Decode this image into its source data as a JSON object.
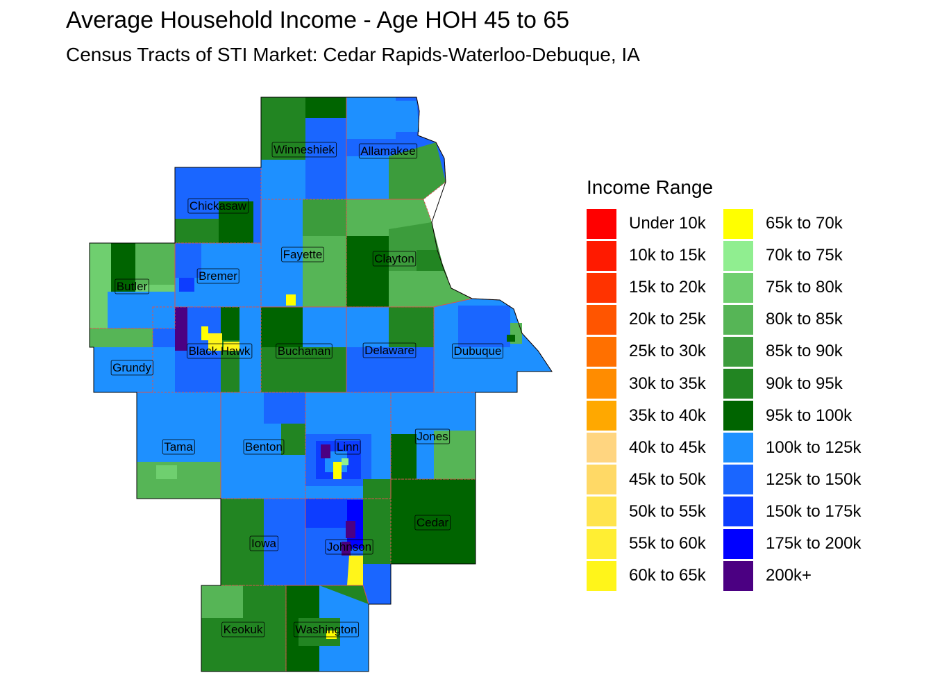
{
  "title": "Average Household Income - Age HOH 45 to 65",
  "subtitle": "Census Tracts of STI Market: Cedar Rapids-Waterloo-Debuque, IA",
  "legend": {
    "title": "Income Range",
    "items": [
      {
        "label": "Under 10k",
        "color": "#FF0000"
      },
      {
        "label": "10k to 15k",
        "color": "#FF1A00"
      },
      {
        "label": "15k to 20k",
        "color": "#FF3300"
      },
      {
        "label": "20k to 25k",
        "color": "#FF5500"
      },
      {
        "label": "25k to 30k",
        "color": "#FF7000"
      },
      {
        "label": "30k to 35k",
        "color": "#FF8C00"
      },
      {
        "label": "35k to 40k",
        "color": "#FFA800"
      },
      {
        "label": "40k to 45k",
        "color": "#FFD580"
      },
      {
        "label": "45k to 50k",
        "color": "#FFD966"
      },
      {
        "label": "50k to 55k",
        "color": "#FFE44D"
      },
      {
        "label": "55k to 60k",
        "color": "#FFEE33"
      },
      {
        "label": "60k to 65k",
        "color": "#FFF51A"
      },
      {
        "label": "65k to 70k",
        "color": "#FFFF00"
      },
      {
        "label": "70k to 75k",
        "color": "#90EE90"
      },
      {
        "label": "75k to 80k",
        "color": "#6FCF6F"
      },
      {
        "label": "80k to 85k",
        "color": "#56B556"
      },
      {
        "label": "85k to 90k",
        "color": "#3C9C3C"
      },
      {
        "label": "90k to 95k",
        "color": "#228522"
      },
      {
        "label": "95k to 100k",
        "color": "#006400"
      },
      {
        "label": "100k to 125k",
        "color": "#1E90FF"
      },
      {
        "label": "125k to 150k",
        "color": "#1A66FF"
      },
      {
        "label": "150k to 175k",
        "color": "#0D3DFF"
      },
      {
        "label": "175k to 200k",
        "color": "#0000FF"
      },
      {
        "label": "200k+",
        "color": "#4B0082"
      }
    ]
  },
  "counties": [
    {
      "name": "Winneshiek",
      "color": "#228522"
    },
    {
      "name": "Allamakee",
      "color": "#1A66FF"
    },
    {
      "name": "Chickasaw",
      "color": "#1A66FF"
    },
    {
      "name": "Fayette",
      "color": "#1E90FF"
    },
    {
      "name": "Clayton",
      "color": "#56B556"
    },
    {
      "name": "Butler",
      "color": "#6FCF6F"
    },
    {
      "name": "Bremer",
      "color": "#1E90FF"
    },
    {
      "name": "Grundy",
      "color": "#1E90FF"
    },
    {
      "name": "Black Hawk",
      "color": "#1A66FF"
    },
    {
      "name": "Buchanan",
      "color": "#228522"
    },
    {
      "name": "Delaware",
      "color": "#1A66FF"
    },
    {
      "name": "Dubuque",
      "color": "#1E90FF"
    },
    {
      "name": "Tama",
      "color": "#1E90FF"
    },
    {
      "name": "Benton",
      "color": "#1E90FF"
    },
    {
      "name": "Linn",
      "color": "#1E90FF"
    },
    {
      "name": "Jones",
      "color": "#1E90FF"
    },
    {
      "name": "Iowa",
      "color": "#228522"
    },
    {
      "name": "Johnson",
      "color": "#1A66FF"
    },
    {
      "name": "Cedar",
      "color": "#006400"
    },
    {
      "name": "Keokuk",
      "color": "#228522"
    },
    {
      "name": "Washington",
      "color": "#228522"
    }
  ]
}
